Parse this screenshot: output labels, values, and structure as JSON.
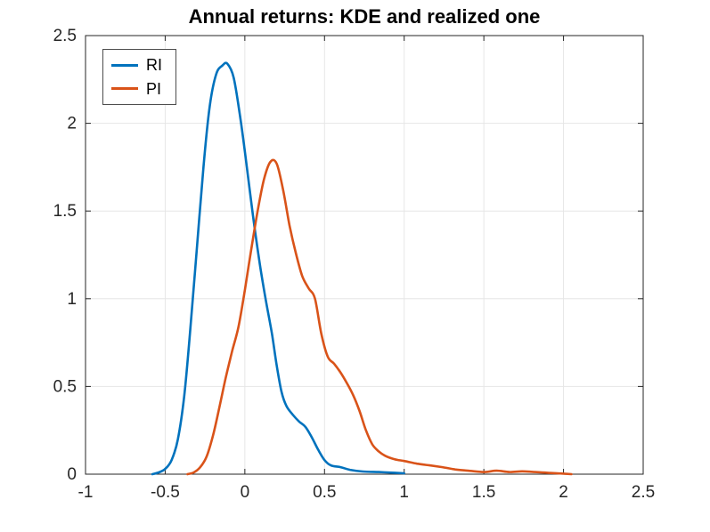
{
  "styles": {
    "background": "#FFFFFF",
    "axis_color": "#262626",
    "grid_color": "#E6E6E6",
    "tick_label_color": "#262626",
    "title_color": "#000000",
    "legend_border_color": "#4D4D4D"
  },
  "chart_data": {
    "type": "line",
    "title": "Annual returns: KDE and realized one",
    "xlabel": "",
    "ylabel": "",
    "xlim": [
      -1,
      2.5
    ],
    "ylim": [
      0,
      2.5
    ],
    "x_ticks": [
      -1,
      -0.5,
      0,
      0.5,
      1,
      1.5,
      2,
      2.5
    ],
    "x_tick_labels": [
      "-1",
      "-0.5",
      "0",
      "0.5",
      "1",
      "1.5",
      "2",
      "2.5"
    ],
    "y_ticks": [
      0,
      0.5,
      1,
      1.5,
      2,
      2.5
    ],
    "y_tick_labels": [
      "0",
      "0.5",
      "1",
      "1.5",
      "2",
      "2.5"
    ],
    "grid": true,
    "legend_position": "top-left",
    "series": [
      {
        "name": "RI",
        "color": "#0072BD",
        "points": [
          [
            -0.58,
            0.0
          ],
          [
            -0.54,
            0.01
          ],
          [
            -0.5,
            0.03
          ],
          [
            -0.46,
            0.08
          ],
          [
            -0.42,
            0.2
          ],
          [
            -0.38,
            0.45
          ],
          [
            -0.34,
            0.85
          ],
          [
            -0.3,
            1.3
          ],
          [
            -0.26,
            1.75
          ],
          [
            -0.22,
            2.1
          ],
          [
            -0.18,
            2.28
          ],
          [
            -0.14,
            2.33
          ],
          [
            -0.11,
            2.34
          ],
          [
            -0.07,
            2.26
          ],
          [
            -0.03,
            2.04
          ],
          [
            0.01,
            1.77
          ],
          [
            0.05,
            1.48
          ],
          [
            0.09,
            1.22
          ],
          [
            0.13,
            1.0
          ],
          [
            0.17,
            0.8
          ],
          [
            0.2,
            0.62
          ],
          [
            0.23,
            0.47
          ],
          [
            0.26,
            0.39
          ],
          [
            0.3,
            0.34
          ],
          [
            0.34,
            0.3
          ],
          [
            0.38,
            0.27
          ],
          [
            0.42,
            0.21
          ],
          [
            0.46,
            0.14
          ],
          [
            0.5,
            0.08
          ],
          [
            0.54,
            0.05
          ],
          [
            0.6,
            0.04
          ],
          [
            0.66,
            0.025
          ],
          [
            0.74,
            0.015
          ],
          [
            0.84,
            0.012
          ],
          [
            0.94,
            0.008
          ],
          [
            1.0,
            0.005
          ]
        ]
      },
      {
        "name": "PI",
        "color": "#D95319",
        "points": [
          [
            -0.36,
            0.0
          ],
          [
            -0.32,
            0.01
          ],
          [
            -0.28,
            0.04
          ],
          [
            -0.24,
            0.1
          ],
          [
            -0.2,
            0.22
          ],
          [
            -0.16,
            0.38
          ],
          [
            -0.12,
            0.55
          ],
          [
            -0.08,
            0.7
          ],
          [
            -0.04,
            0.84
          ],
          [
            0.0,
            1.05
          ],
          [
            0.04,
            1.28
          ],
          [
            0.08,
            1.5
          ],
          [
            0.12,
            1.68
          ],
          [
            0.16,
            1.78
          ],
          [
            0.2,
            1.77
          ],
          [
            0.24,
            1.62
          ],
          [
            0.28,
            1.42
          ],
          [
            0.32,
            1.26
          ],
          [
            0.36,
            1.13
          ],
          [
            0.4,
            1.06
          ],
          [
            0.44,
            1.0
          ],
          [
            0.48,
            0.8
          ],
          [
            0.52,
            0.67
          ],
          [
            0.56,
            0.63
          ],
          [
            0.6,
            0.58
          ],
          [
            0.64,
            0.52
          ],
          [
            0.68,
            0.45
          ],
          [
            0.72,
            0.36
          ],
          [
            0.76,
            0.25
          ],
          [
            0.8,
            0.17
          ],
          [
            0.84,
            0.13
          ],
          [
            0.88,
            0.105
          ],
          [
            0.94,
            0.085
          ],
          [
            1.0,
            0.075
          ],
          [
            1.08,
            0.06
          ],
          [
            1.16,
            0.05
          ],
          [
            1.24,
            0.04
          ],
          [
            1.32,
            0.027
          ],
          [
            1.4,
            0.02
          ],
          [
            1.5,
            0.012
          ],
          [
            1.58,
            0.02
          ],
          [
            1.66,
            0.012
          ],
          [
            1.74,
            0.016
          ],
          [
            1.82,
            0.012
          ],
          [
            1.9,
            0.008
          ],
          [
            1.98,
            0.004
          ],
          [
            2.05,
            0.0
          ]
        ]
      }
    ]
  }
}
